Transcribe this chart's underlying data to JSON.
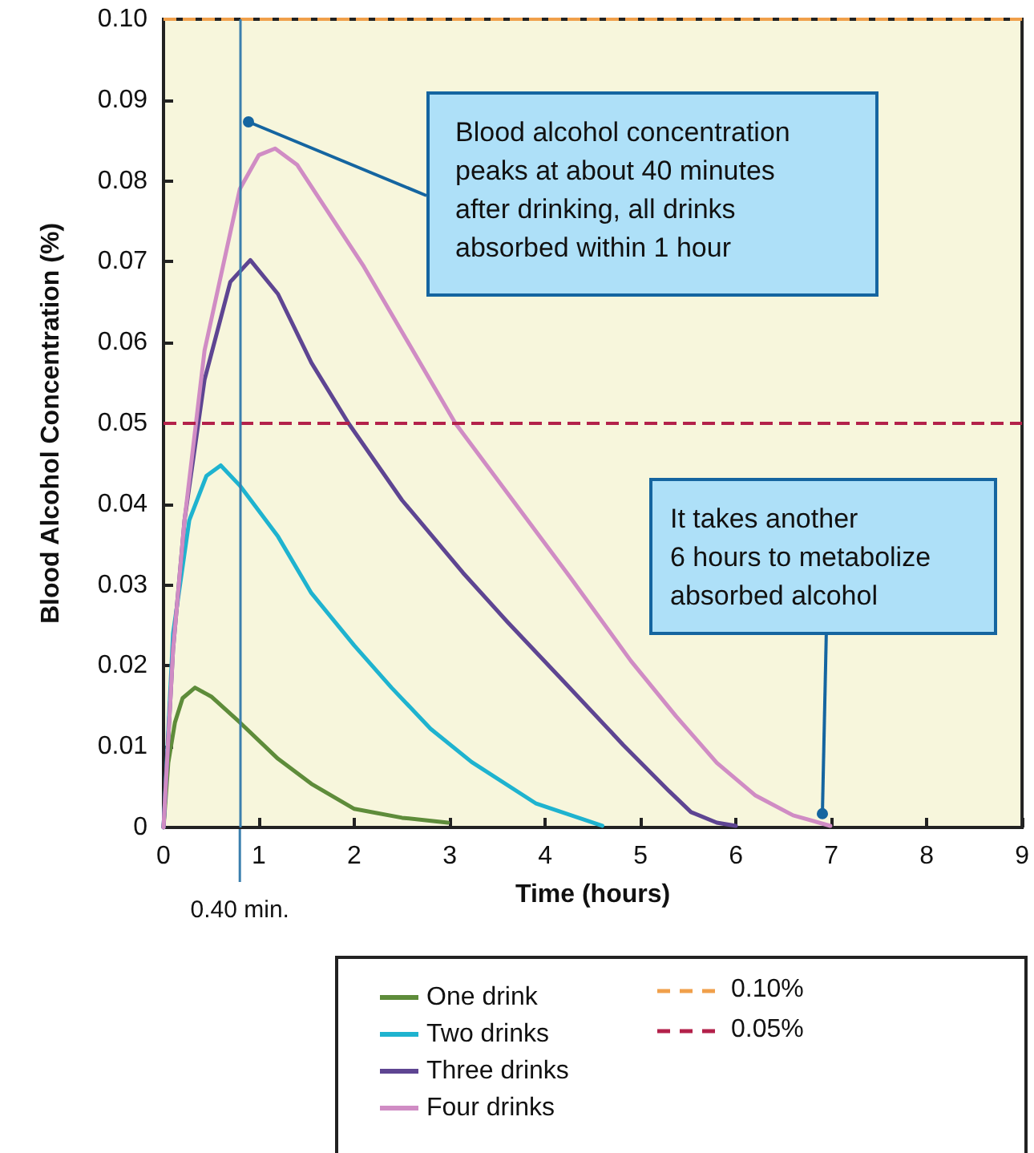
{
  "chart_data": {
    "type": "line",
    "xlabel": "Time (hours)",
    "ylabel": "Blood Alcohol Concentration (%)",
    "xlim": [
      0,
      9
    ],
    "xticks": [
      0,
      1,
      2,
      3,
      4,
      5,
      6,
      7,
      8,
      9
    ],
    "ylim": [
      0,
      0.1
    ],
    "yticks": [
      0,
      0.01,
      0.02,
      0.03,
      0.04,
      0.05,
      0.06,
      0.07,
      0.08,
      0.09,
      {
        "value": 0.1,
        "label": "0.10"
      }
    ],
    "grid": false,
    "legend": "bottom",
    "marker": "none",
    "line_style": "solid",
    "series": [
      {
        "name": "One drink",
        "color": "#5e8c3a",
        "x": [
          0,
          0.05,
          0.12,
          0.2,
          0.33,
          0.5,
          0.8,
          1.2,
          1.55,
          2.0,
          2.5,
          2.98
        ],
        "values": [
          0,
          0.008,
          0.013,
          0.016,
          0.0173,
          0.0162,
          0.013,
          0.0085,
          0.0054,
          0.0023,
          0.0012,
          0.0006
        ]
      },
      {
        "name": "Two drinks",
        "color": "#1fb3cf",
        "x": [
          0,
          0.1,
          0.27,
          0.45,
          0.6,
          0.8,
          1.2,
          1.55,
          2.0,
          2.39,
          2.8,
          3.23,
          3.9,
          4.6
        ],
        "values": [
          0,
          0.024,
          0.038,
          0.0435,
          0.0448,
          0.0423,
          0.036,
          0.029,
          0.0225,
          0.0173,
          0.0122,
          0.0081,
          0.003,
          0.0002
        ]
      },
      {
        "name": "Three drinks",
        "color": "#5e4592",
        "x": [
          0,
          0.1,
          0.22,
          0.43,
          0.7,
          0.91,
          1.2,
          1.55,
          1.94,
          2.5,
          3.14,
          3.6,
          4.2,
          4.82,
          5.3,
          5.53,
          5.8,
          6.0
        ],
        "values": [
          0,
          0.022,
          0.038,
          0.0554,
          0.0675,
          0.0702,
          0.066,
          0.0575,
          0.05,
          0.0405,
          0.0315,
          0.0255,
          0.018,
          0.0102,
          0.0045,
          0.0019,
          0.0006,
          0.0002
        ]
      },
      {
        "name": "Four drinks",
        "color": "#d08cc4",
        "x": [
          0,
          0.1,
          0.22,
          0.43,
          0.8,
          1.0,
          1.17,
          1.4,
          2.1,
          3.06,
          4.26,
          4.9,
          5.37,
          5.8,
          6.2,
          6.6,
          6.99
        ],
        "values": [
          0,
          0.022,
          0.038,
          0.059,
          0.079,
          0.0832,
          0.084,
          0.082,
          0.0694,
          0.05,
          0.031,
          0.0206,
          0.0138,
          0.008,
          0.004,
          0.0015,
          0.0002
        ]
      }
    ],
    "ref_lines": [
      {
        "axis": "y",
        "value": 0.1,
        "label": "0.10%",
        "color": "#f0a04b",
        "line_style": "dashed"
      },
      {
        "axis": "y",
        "value": 0.05,
        "label": "0.05%",
        "color": "#b3214a",
        "line_style": "dashed"
      },
      {
        "axis": "x",
        "value": 0.8,
        "label": "0.40 min.",
        "color": "#3b7fae",
        "line_style": "solid"
      }
    ],
    "annotations": [
      {
        "text": "Blood alcohol concentration\npeaks at about 40 minutes\nafter drinking, all drinks\nabsorbed within 1 hour",
        "x": 0.89,
        "y": 0.0873
      },
      {
        "text": "It takes another\n6 hours to metabolize\nabsorbed alcohol",
        "x": 6.9,
        "y": 0.0017
      }
    ]
  }
}
